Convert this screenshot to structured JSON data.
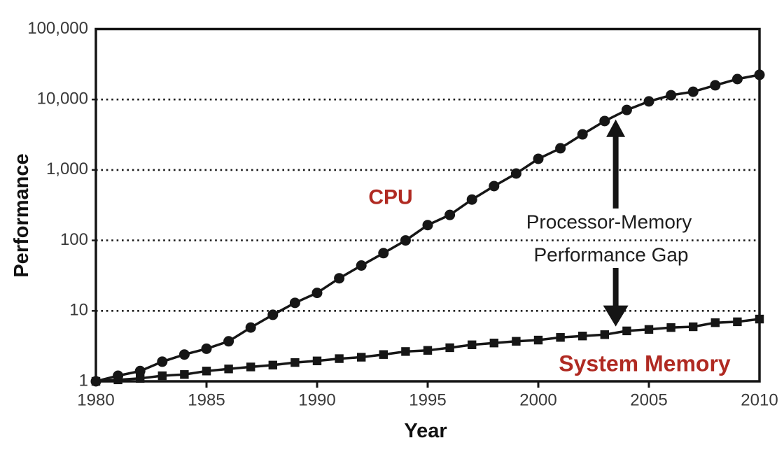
{
  "figure": {
    "ylabel": "Performance",
    "xlabel": "Year",
    "cpu_label": "CPU",
    "memory_label": "System Memory",
    "annotation_line1": "Processor-Memory",
    "annotation_line2": "Performance Gap"
  },
  "colors": {
    "line_and_marker": "#161616",
    "series_label_red": "#B02A22",
    "tick_text": "#3a3a3a",
    "annotation_text": "#1e1e1e",
    "background": "#ffffff"
  },
  "chart_data": {
    "type": "line",
    "title": "",
    "xlabel": "Year",
    "ylabel": "Performance",
    "y_scale": "log",
    "xlim": [
      1980,
      2010
    ],
    "ylim": [
      1,
      100000
    ],
    "grid": "horizontal dotted lines at 10, 100, 1000, 10000",
    "legend_position": "inline labels on plot (CPU above upper curve, System Memory below lower curve)",
    "x_ticks": [
      1980,
      1985,
      1990,
      1995,
      2000,
      2005,
      2010
    ],
    "x_tick_labels": [
      "1980",
      "1985",
      "1990",
      "1995",
      "2000",
      "2005",
      "2010"
    ],
    "y_ticks": [
      1,
      10,
      100,
      1000,
      10000,
      100000
    ],
    "y_tick_labels": [
      "1",
      "10",
      "100",
      "1,000",
      "10,000",
      "100,000"
    ],
    "x": [
      1980,
      1981,
      1982,
      1983,
      1984,
      1985,
      1986,
      1987,
      1988,
      1989,
      1990,
      1991,
      1992,
      1993,
      1994,
      1995,
      1996,
      1997,
      1998,
      1999,
      2000,
      2001,
      2002,
      2003,
      2004,
      2005,
      2006,
      2007,
      2008,
      2009,
      2010
    ],
    "series": [
      {
        "name": "CPU",
        "marker": "circle",
        "values": [
          1,
          1.2,
          1.4,
          1.9,
          2.4,
          2.9,
          3.7,
          5.8,
          8.8,
          13,
          18,
          29,
          44,
          66,
          100,
          165,
          230,
          380,
          590,
          890,
          1440,
          2030,
          3200,
          4950,
          7100,
          9400,
          11500,
          12900,
          15900,
          19500,
          22400
        ]
      },
      {
        "name": "System Memory",
        "marker": "square",
        "values": [
          1,
          1.05,
          1.1,
          1.2,
          1.25,
          1.4,
          1.5,
          1.6,
          1.7,
          1.85,
          1.95,
          2.1,
          2.2,
          2.4,
          2.65,
          2.75,
          3.0,
          3.3,
          3.5,
          3.7,
          3.85,
          4.2,
          4.4,
          4.6,
          5.2,
          5.45,
          5.8,
          5.95,
          6.8,
          7.0,
          7.65
        ]
      }
    ],
    "annotation": {
      "text": [
        "Processor-Memory",
        "Performance Gap"
      ],
      "arrow": "vertical double-headed arrow at x = 2003.5 spanning from System Memory curve (~6) up to CPU curve (~5200)",
      "arrow_x": 2003.5,
      "arrow_top_value": 5200,
      "arrow_bottom_value": 6.0
    }
  }
}
